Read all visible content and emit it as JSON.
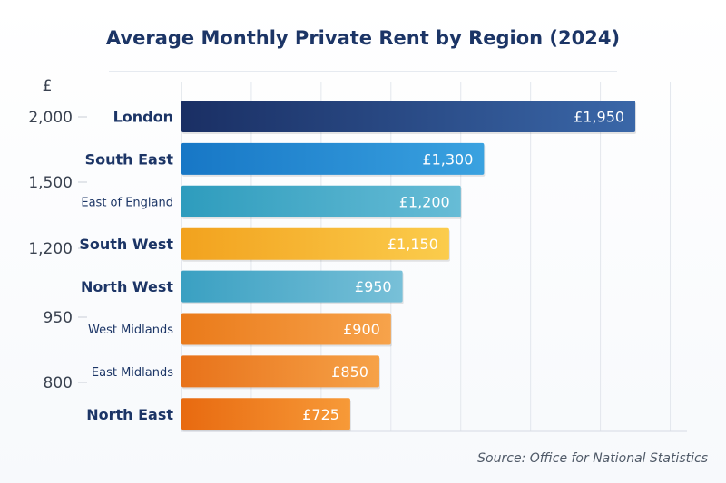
{
  "chart_data": {
    "type": "bar",
    "orientation": "horizontal",
    "title": "Average Monthly Private Rent by Region (2024)",
    "unit_label": "£",
    "source": "Source: Office for National Statistics",
    "xlim": [
      0,
      2250
    ],
    "grid": true,
    "categories": [
      "London",
      "South East",
      "East of England",
      "South West",
      "North West",
      "West Midlands",
      "East Midlands",
      "North East"
    ],
    "values": [
      1950,
      1300,
      1200,
      1150,
      950,
      900,
      850,
      725
    ],
    "value_labels": [
      "£1,950",
      "£1,300",
      "£1,200",
      "£1,150",
      "£950",
      "£900",
      "£850",
      "£725"
    ],
    "left_axis_ticks": [
      "2,000",
      "1,500",
      "1,200",
      "950",
      "800"
    ],
    "bar_colors": [
      [
        "#1a2f64",
        "#3a67a8"
      ],
      [
        "#1777c6",
        "#3aa2e0"
      ],
      [
        "#2e9cbd",
        "#67bcd6"
      ],
      [
        "#f2a21e",
        "#fbcc4c"
      ],
      [
        "#3aa0c2",
        "#78c0d8"
      ],
      [
        "#ea7a1a",
        "#f7a34b"
      ],
      [
        "#e8721a",
        "#f6a248"
      ],
      [
        "#e86a10",
        "#f79a38"
      ]
    ]
  }
}
